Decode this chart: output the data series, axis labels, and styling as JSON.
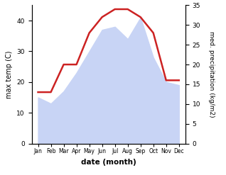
{
  "months": [
    "Jan",
    "Feb",
    "Mar",
    "Apr",
    "May",
    "Jun",
    "Jul",
    "Aug",
    "Sep",
    "Oct",
    "Nov",
    "Dec"
  ],
  "temp": [
    15,
    13,
    17,
    23,
    30,
    37,
    38,
    34,
    41,
    28,
    20,
    19
  ],
  "precip": [
    13,
    13,
    20,
    20,
    28,
    32,
    34,
    34,
    32,
    28,
    16,
    16
  ],
  "temp_fill_color": "#c8d4f5",
  "precip_color": "#cc2222",
  "ylabel_left": "max temp (C)",
  "ylabel_right": "med. precipitation (kg/m2)",
  "xlabel": "date (month)",
  "ylim_left": [
    0,
    45
  ],
  "ylim_right": [
    0,
    35
  ],
  "yticks_left": [
    0,
    10,
    20,
    30,
    40
  ],
  "yticks_right": [
    0,
    5,
    10,
    15,
    20,
    25,
    30,
    35
  ],
  "bg_color": "#ffffff"
}
